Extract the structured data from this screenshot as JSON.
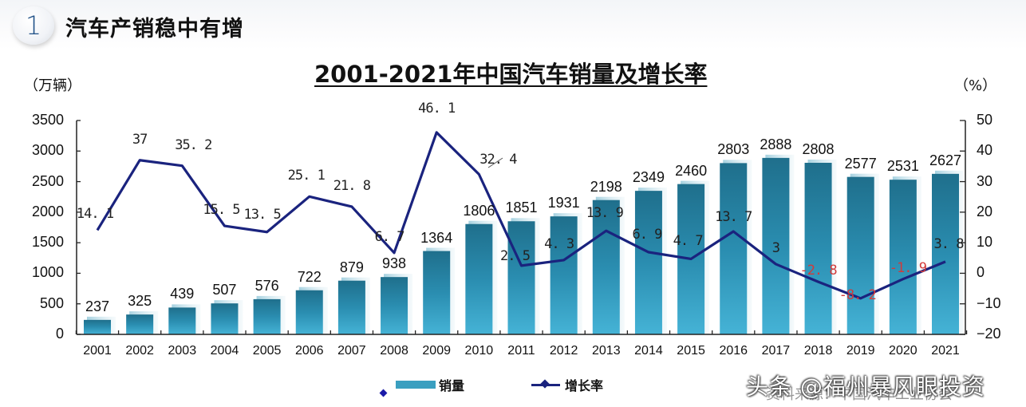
{
  "header": {
    "badge_number": "1",
    "section_title": "汽车产销稳中有增"
  },
  "chart_title": "2001-2021年中国汽车销量及增长率",
  "left_axis_unit": "（万辆）",
  "right_axis_unit": "（%）",
  "left_ticks": [
    "3500",
    "3000",
    "2500",
    "2000",
    "1500",
    "1000",
    "500",
    "0"
  ],
  "right_ticks": [
    "50",
    "40",
    "30",
    "20",
    "10",
    "0",
    "-10",
    "-20"
  ],
  "legend": {
    "bar_label": "销量",
    "line_label": "增长率"
  },
  "watermark": "头条 @福州暴风眼投资",
  "source_text": "资料来源：中国汽车工业协会",
  "colors": {
    "bar": "#3a9fc0",
    "bar_top": "#1f6f8c",
    "line": "#1a237e",
    "negative_label": "#d23a3a"
  },
  "chart_data": {
    "type": "bar+line",
    "title": "2001-2021年中国汽车销量及增长率",
    "xlabel": "",
    "ylabel": "万辆",
    "y2label": "%",
    "ylim": [
      0,
      3500
    ],
    "y2lim": [
      -20,
      50
    ],
    "grid": false,
    "legend_position": "bottom",
    "categories": [
      "2001",
      "2002",
      "2003",
      "2004",
      "2005",
      "2006",
      "2007",
      "2008",
      "2009",
      "2010",
      "2011",
      "2012",
      "2013",
      "2014",
      "2015",
      "2016",
      "2017",
      "2018",
      "2019",
      "2020",
      "2021"
    ],
    "series": [
      {
        "name": "销量",
        "type": "bar",
        "axis": "left",
        "values": [
          237,
          325,
          439,
          507,
          576,
          722,
          879,
          938,
          1364,
          1806,
          1851,
          1931,
          2198,
          2349,
          2460,
          2803,
          2888,
          2808,
          2577,
          2531,
          2627
        ]
      },
      {
        "name": "增长率",
        "type": "line",
        "axis": "right",
        "values": [
          14.1,
          37,
          35.2,
          15.5,
          13.5,
          25.1,
          21.8,
          6.7,
          46.1,
          32.4,
          2.5,
          4.3,
          13.9,
          6.9,
          4.7,
          13.7,
          3,
          -2.8,
          -8.2,
          -1.9,
          3.8
        ],
        "labels": [
          "14.1",
          "37",
          "35.2",
          "15.5",
          "13.5",
          "25.1",
          "21.8",
          "6.7",
          "46.1",
          "32.4",
          "2.5",
          "4.3",
          "13.9",
          "6.9",
          "4.7",
          "13.7",
          "3",
          "-2.8",
          "-8.2",
          "-1.9",
          "3.8"
        ]
      }
    ]
  }
}
